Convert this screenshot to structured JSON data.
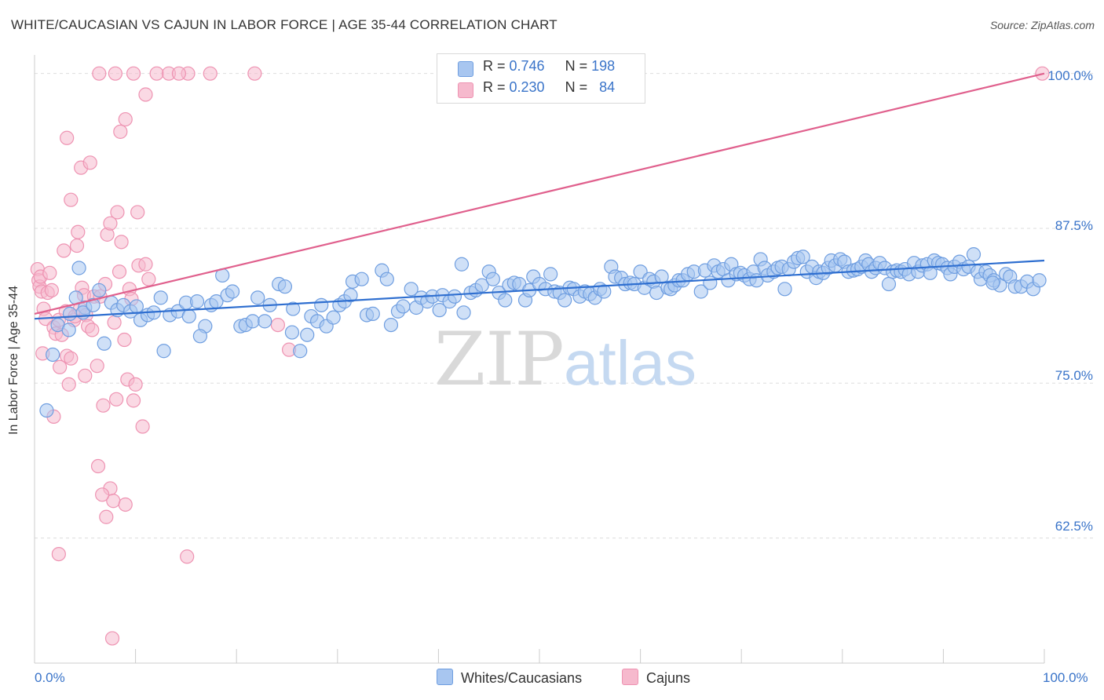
{
  "title": "WHITE/CAUCASIAN VS CAJUN IN LABOR FORCE | AGE 35-44 CORRELATION CHART",
  "source": "Source: ZipAtlas.com",
  "watermark": {
    "zip": "ZIP",
    "atlas": "atlas"
  },
  "legend_top": {
    "rows": [
      {
        "r_label": "R = ",
        "r_value": "0.746",
        "n_label": "N = ",
        "n_value": "198"
      },
      {
        "r_label": "R = ",
        "r_value": "0.230",
        "n_label": "N = ",
        "n_value": "84"
      }
    ]
  },
  "legend_bottom": {
    "series1": "Whites/Caucasians",
    "series2": "Cajuns"
  },
  "x_tick_labels": {
    "left": "0.0%",
    "right": "100.0%"
  },
  "y_tick_labels": [
    "100.0%",
    "87.5%",
    "75.0%",
    "62.5%"
  ],
  "colors": {
    "blue_fill": "#a8c6f0",
    "blue_stroke": "#6f9ee0",
    "blue_line": "#2f6fd0",
    "pink_fill": "#f6b9cd",
    "pink_stroke": "#ee93b2",
    "pink_line": "#e0608d",
    "tick_label": "#3a74c9",
    "grid": "#dddddd"
  },
  "chart_data": {
    "type": "scatter",
    "title": "WHITE/CAUCASIAN VS CAJUN IN LABOR FORCE | AGE 35-44 CORRELATION CHART",
    "xlabel": "",
    "ylabel": "In Labor Force | Age 35-44",
    "xlim": [
      0,
      100
    ],
    "ylim": [
      52.4,
      101.5
    ],
    "y_ticks": [
      62.5,
      75.0,
      87.5,
      100.0
    ],
    "grid": "horizontal dashed",
    "legend_position": "top-center",
    "series": [
      {
        "name": "Whites/Caucasians",
        "R": 0.746,
        "N": 198,
        "trend": {
          "x": [
            0,
            100
          ],
          "y": [
            80.2,
            84.9
          ]
        },
        "points": [
          [
            1.2,
            72.8
          ],
          [
            1.8,
            77.3
          ],
          [
            2.3,
            79.7
          ],
          [
            3.5,
            80.6
          ],
          [
            3.4,
            79.3
          ],
          [
            4.1,
            81.9
          ],
          [
            4.4,
            84.3
          ],
          [
            5.0,
            81.1
          ],
          [
            4.8,
            80.7
          ],
          [
            5.8,
            81.3
          ],
          [
            6.4,
            82.5
          ],
          [
            6.9,
            78.2
          ],
          [
            7.6,
            81.5
          ],
          [
            8.2,
            80.9
          ],
          [
            8.8,
            81.3
          ],
          [
            9.5,
            80.8
          ],
          [
            10.1,
            81.2
          ],
          [
            10.5,
            80.1
          ],
          [
            11.2,
            80.5
          ],
          [
            11.8,
            80.7
          ],
          [
            12.5,
            81.9
          ],
          [
            12.8,
            77.6
          ],
          [
            13.4,
            80.5
          ],
          [
            14.2,
            80.8
          ],
          [
            15.0,
            81.5
          ],
          [
            15.3,
            80.4
          ],
          [
            16.1,
            81.6
          ],
          [
            16.9,
            79.6
          ],
          [
            16.4,
            78.8
          ],
          [
            17.5,
            81.3
          ],
          [
            18.0,
            81.6
          ],
          [
            18.6,
            83.7
          ],
          [
            19.1,
            82.1
          ],
          [
            19.6,
            82.4
          ],
          [
            20.4,
            79.6
          ],
          [
            20.9,
            79.7
          ],
          [
            21.6,
            80.0
          ],
          [
            22.1,
            81.9
          ],
          [
            22.8,
            80.0
          ],
          [
            23.3,
            81.3
          ],
          [
            24.2,
            83.0
          ],
          [
            24.8,
            82.8
          ],
          [
            25.5,
            79.1
          ],
          [
            25.6,
            81.0
          ],
          [
            26.3,
            77.6
          ],
          [
            27.0,
            78.9
          ],
          [
            27.4,
            80.4
          ],
          [
            28.0,
            80.0
          ],
          [
            28.4,
            81.3
          ],
          [
            28.9,
            79.6
          ],
          [
            29.6,
            80.3
          ],
          [
            30.2,
            81.3
          ],
          [
            30.7,
            81.6
          ],
          [
            31.3,
            82.1
          ],
          [
            31.5,
            83.2
          ],
          [
            32.4,
            83.4
          ],
          [
            32.9,
            80.5
          ],
          [
            33.5,
            80.6
          ],
          [
            34.4,
            84.1
          ],
          [
            34.9,
            83.4
          ],
          [
            35.3,
            79.7
          ],
          [
            36.0,
            80.8
          ],
          [
            36.5,
            81.2
          ],
          [
            37.3,
            82.6
          ],
          [
            37.8,
            81.1
          ],
          [
            38.3,
            81.9
          ],
          [
            38.9,
            81.6
          ],
          [
            39.4,
            82.0
          ],
          [
            40.1,
            80.9
          ],
          [
            40.4,
            82.1
          ],
          [
            41.1,
            81.6
          ],
          [
            41.6,
            82.0
          ],
          [
            42.3,
            84.6
          ],
          [
            42.5,
            80.7
          ],
          [
            43.2,
            82.3
          ],
          [
            43.7,
            82.5
          ],
          [
            44.3,
            82.9
          ],
          [
            45.0,
            84.0
          ],
          [
            45.4,
            83.4
          ],
          [
            46.0,
            82.3
          ],
          [
            46.6,
            81.7
          ],
          [
            47.0,
            82.9
          ],
          [
            47.5,
            83.1
          ],
          [
            48.0,
            83.0
          ],
          [
            48.6,
            81.7
          ],
          [
            49.0,
            82.5
          ],
          [
            49.4,
            83.6
          ],
          [
            50.0,
            83.0
          ],
          [
            50.6,
            82.6
          ],
          [
            51.1,
            83.8
          ],
          [
            51.5,
            82.4
          ],
          [
            52.0,
            82.3
          ],
          [
            52.5,
            81.7
          ],
          [
            53.0,
            82.7
          ],
          [
            53.4,
            82.6
          ],
          [
            54.0,
            82.0
          ],
          [
            54.5,
            82.4
          ],
          [
            55.0,
            82.2
          ],
          [
            55.5,
            81.9
          ],
          [
            56.0,
            82.6
          ],
          [
            56.4,
            82.4
          ],
          [
            57.1,
            84.4
          ],
          [
            57.5,
            83.6
          ],
          [
            58.1,
            83.5
          ],
          [
            58.5,
            83.0
          ],
          [
            59.0,
            83.1
          ],
          [
            59.4,
            83.0
          ],
          [
            60.0,
            84.0
          ],
          [
            60.4,
            82.7
          ],
          [
            60.9,
            83.4
          ],
          [
            61.3,
            83.2
          ],
          [
            61.6,
            82.3
          ],
          [
            62.1,
            83.6
          ],
          [
            62.7,
            82.7
          ],
          [
            63.0,
            82.6
          ],
          [
            63.4,
            82.9
          ],
          [
            63.8,
            83.3
          ],
          [
            64.2,
            83.3
          ],
          [
            64.7,
            83.8
          ],
          [
            65.3,
            84.0
          ],
          [
            66.0,
            82.4
          ],
          [
            66.4,
            84.1
          ],
          [
            66.9,
            83.1
          ],
          [
            67.3,
            84.5
          ],
          [
            67.7,
            84.0
          ],
          [
            68.2,
            84.2
          ],
          [
            68.7,
            83.3
          ],
          [
            69.0,
            84.6
          ],
          [
            69.5,
            83.8
          ],
          [
            69.9,
            83.9
          ],
          [
            70.3,
            83.7
          ],
          [
            70.8,
            83.4
          ],
          [
            71.2,
            84.0
          ],
          [
            71.5,
            83.3
          ],
          [
            71.9,
            85.0
          ],
          [
            72.3,
            84.3
          ],
          [
            72.6,
            83.7
          ],
          [
            73.2,
            84.0
          ],
          [
            73.6,
            84.3
          ],
          [
            74.0,
            84.4
          ],
          [
            74.3,
            82.6
          ],
          [
            74.7,
            84.2
          ],
          [
            75.2,
            84.8
          ],
          [
            75.6,
            85.1
          ],
          [
            76.1,
            85.2
          ],
          [
            76.5,
            84.0
          ],
          [
            77.0,
            84.4
          ],
          [
            77.4,
            83.5
          ],
          [
            77.7,
            84.0
          ],
          [
            78.1,
            83.9
          ],
          [
            78.6,
            84.3
          ],
          [
            78.9,
            84.9
          ],
          [
            79.3,
            84.5
          ],
          [
            79.8,
            85.0
          ],
          [
            80.2,
            84.8
          ],
          [
            80.6,
            84.0
          ],
          [
            81.1,
            84.1
          ],
          [
            81.5,
            84.2
          ],
          [
            81.9,
            84.4
          ],
          [
            82.3,
            84.9
          ],
          [
            82.6,
            84.6
          ],
          [
            82.9,
            84.0
          ],
          [
            83.3,
            84.3
          ],
          [
            83.7,
            84.7
          ],
          [
            84.2,
            84.3
          ],
          [
            84.6,
            83.0
          ],
          [
            85.0,
            84.0
          ],
          [
            85.4,
            84.1
          ],
          [
            85.8,
            84.0
          ],
          [
            86.2,
            84.2
          ],
          [
            86.6,
            83.8
          ],
          [
            87.1,
            84.7
          ],
          [
            87.5,
            84.0
          ],
          [
            87.9,
            84.5
          ],
          [
            88.4,
            84.6
          ],
          [
            88.7,
            83.9
          ],
          [
            89.1,
            84.9
          ],
          [
            89.5,
            84.7
          ],
          [
            89.9,
            84.6
          ],
          [
            90.4,
            84.3
          ],
          [
            90.7,
            83.8
          ],
          [
            91.1,
            84.4
          ],
          [
            91.6,
            84.8
          ],
          [
            92.0,
            84.2
          ],
          [
            92.5,
            84.4
          ],
          [
            93.0,
            85.4
          ],
          [
            93.4,
            84.0
          ],
          [
            93.7,
            83.4
          ],
          [
            94.2,
            84.0
          ],
          [
            94.6,
            83.7
          ],
          [
            95.0,
            83.3
          ],
          [
            95.6,
            82.9
          ],
          [
            96.2,
            83.8
          ],
          [
            96.6,
            83.6
          ],
          [
            97.1,
            82.8
          ],
          [
            97.7,
            82.8
          ],
          [
            98.3,
            83.2
          ],
          [
            98.9,
            82.6
          ],
          [
            99.5,
            83.3
          ],
          [
            94.9,
            83.1
          ]
        ]
      },
      {
        "name": "Cajuns",
        "R": 0.23,
        "N": 84,
        "trend": {
          "x": [
            0,
            100
          ],
          "y": [
            80.6,
            100.0
          ]
        },
        "points": [
          [
            0.3,
            84.2
          ],
          [
            0.4,
            83.3
          ],
          [
            0.5,
            82.8
          ],
          [
            0.6,
            83.6
          ],
          [
            0.7,
            82.4
          ],
          [
            0.9,
            81.0
          ],
          [
            1.1,
            80.2
          ],
          [
            1.3,
            82.3
          ],
          [
            1.5,
            83.9
          ],
          [
            1.7,
            82.5
          ],
          [
            1.9,
            79.5
          ],
          [
            2.1,
            79.0
          ],
          [
            2.4,
            80.1
          ],
          [
            2.7,
            78.9
          ],
          [
            2.9,
            85.7
          ],
          [
            3.1,
            80.8
          ],
          [
            3.2,
            77.2
          ],
          [
            3.4,
            74.9
          ],
          [
            3.6,
            77.0
          ],
          [
            3.9,
            80.1
          ],
          [
            4.0,
            80.4
          ],
          [
            4.2,
            86.1
          ],
          [
            4.3,
            87.2
          ],
          [
            4.5,
            81.0
          ],
          [
            4.7,
            82.7
          ],
          [
            4.9,
            82.1
          ],
          [
            5.1,
            80.5
          ],
          [
            5.3,
            79.6
          ],
          [
            5.7,
            79.3
          ],
          [
            5.9,
            82.0
          ],
          [
            6.2,
            76.4
          ],
          [
            6.5,
            82.0
          ],
          [
            6.8,
            73.2
          ],
          [
            7.0,
            83.0
          ],
          [
            7.2,
            87.0
          ],
          [
            7.5,
            66.5
          ],
          [
            7.8,
            65.5
          ],
          [
            8.1,
            73.7
          ],
          [
            8.4,
            84.0
          ],
          [
            8.6,
            86.4
          ],
          [
            8.9,
            78.5
          ],
          [
            9.2,
            75.3
          ],
          [
            9.4,
            82.6
          ],
          [
            9.6,
            81.8
          ],
          [
            9.8,
            73.6
          ],
          [
            10.0,
            74.9
          ],
          [
            10.3,
            84.5
          ],
          [
            10.7,
            71.5
          ],
          [
            11.0,
            84.6
          ],
          [
            11.3,
            83.4
          ],
          [
            3.2,
            94.8
          ],
          [
            3.6,
            89.8
          ],
          [
            4.6,
            92.4
          ],
          [
            5.5,
            92.8
          ],
          [
            6.3,
            68.3
          ],
          [
            7.1,
            64.2
          ],
          [
            7.5,
            87.9
          ],
          [
            8.2,
            88.8
          ],
          [
            8.5,
            95.3
          ],
          [
            9.0,
            96.3
          ],
          [
            10.2,
            88.8
          ],
          [
            11.0,
            98.3
          ],
          [
            12.1,
            100.0
          ],
          [
            13.3,
            100.0
          ],
          [
            15.2,
            100.0
          ],
          [
            17.4,
            100.0
          ],
          [
            21.8,
            100.0
          ],
          [
            6.4,
            100.0
          ],
          [
            8.0,
            100.0
          ],
          [
            9.8,
            100.0
          ],
          [
            2.4,
            61.2
          ],
          [
            7.7,
            54.4
          ],
          [
            1.9,
            72.3
          ],
          [
            0.8,
            77.4
          ],
          [
            5.0,
            75.6
          ],
          [
            7.9,
            79.9
          ],
          [
            9.0,
            65.2
          ],
          [
            2.5,
            76.3
          ],
          [
            24.1,
            79.7
          ],
          [
            25.2,
            77.7
          ],
          [
            15.1,
            61.0
          ],
          [
            6.7,
            66.0
          ],
          [
            14.3,
            100.0
          ],
          [
            99.8,
            100.0
          ]
        ]
      }
    ]
  }
}
